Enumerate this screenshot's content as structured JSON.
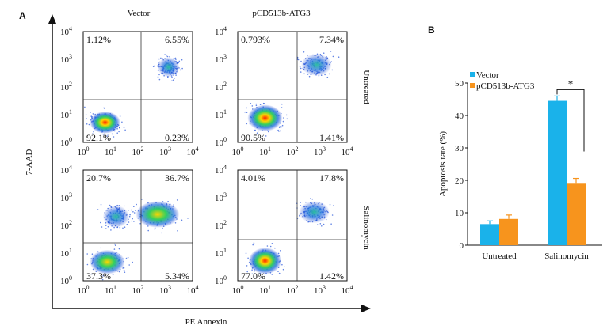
{
  "panel_a": {
    "letter": "A",
    "column_titles": [
      "Vector",
      "pCD513b-ATG3"
    ],
    "row_labels": [
      "Untreated",
      "Salinomycin"
    ],
    "y_axis_label": "7-AAD",
    "x_axis_label": "PE Annexin",
    "tick_labels": [
      "10",
      "10",
      "10",
      "10",
      "10"
    ],
    "tick_exponents": [
      "0",
      "1",
      "2",
      "3",
      "4"
    ],
    "plots": [
      {
        "name": "vector-untreated",
        "q_ul": "1.12%",
        "q_ur": "6.55%",
        "q_ll": "92.1%",
        "q_lr": "0.23%"
      },
      {
        "name": "atg3-untreated",
        "q_ul": "0.793%",
        "q_ur": "7.34%",
        "q_ll": "90.5%",
        "q_lr": "1.41%"
      },
      {
        "name": "vector-salinomycin",
        "q_ul": "20.7%",
        "q_ur": "36.7%",
        "q_ll": "37.3%",
        "q_lr": "5.34%"
      },
      {
        "name": "atg3-salinomycin",
        "q_ul": "4.01%",
        "q_ur": "17.8%",
        "q_ll": "77.0%",
        "q_lr": "1.42%"
      }
    ]
  },
  "panel_b": {
    "letter": "B",
    "significance": "*"
  },
  "chart_data": {
    "type": "bar",
    "categories": [
      "Untreated",
      "Salinomycin"
    ],
    "series": [
      {
        "name": "Vector",
        "values": [
          6.5,
          44.5
        ],
        "errors": [
          1.0,
          1.5
        ],
        "color": "#1ab2ea"
      },
      {
        "name": "pCD513b-ATG3",
        "values": [
          8.1,
          19.2
        ],
        "errors": [
          1.2,
          1.4
        ],
        "color": "#f7941d"
      }
    ],
    "ylabel": "Apoptosis rate (%)",
    "ylim": [
      0,
      50
    ],
    "yticks": [
      "0",
      "10",
      "20",
      "30",
      "40",
      "50"
    ],
    "legend_placement": "top-left",
    "grid": false
  }
}
